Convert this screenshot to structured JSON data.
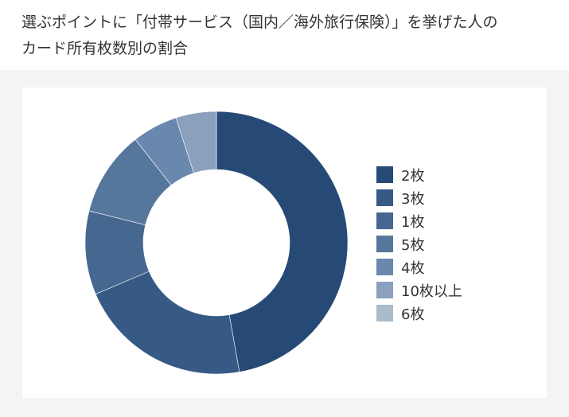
{
  "chart_data": {
    "type": "pie",
    "donut": true,
    "title_lines": [
      "選ぶポイントに「付帯サービス（国内／海外旅行保険）」を挙げた人の",
      "カード所有枚数別の割合"
    ],
    "categories": [
      "2枚",
      "3枚",
      "1枚",
      "5枚",
      "4枚",
      "10枚以上",
      "6枚"
    ],
    "values": [
      47.2,
      21.4,
      10.3,
      10.5,
      5.6,
      5.0,
      0.0
    ],
    "unit": "%",
    "colors": [
      "#264a75",
      "#365a85",
      "#46678f",
      "#56779c",
      "#6a88ad",
      "#8aa0bd",
      "#a9bccb"
    ],
    "legend_position": "right",
    "start_angle": "top, clockwise"
  }
}
